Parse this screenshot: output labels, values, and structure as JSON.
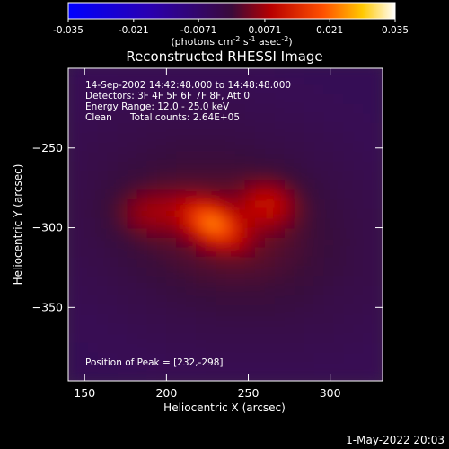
{
  "chart_data": {
    "type": "heatmap",
    "title": "Reconstructed RHESSI Image",
    "xlabel": "Heliocentric X (arcsec)",
    "ylabel": "Heliocentric Y (arcsec)",
    "xlim": [
      140,
      332
    ],
    "ylim": [
      -396,
      -200
    ],
    "xticks": [
      150,
      200,
      250,
      300
    ],
    "yticks": [
      -250,
      -300,
      -350
    ],
    "colorbar": {
      "range": [
        -0.035,
        0.035
      ],
      "ticks": [
        "-0.035",
        "-0.021",
        "-0.0071",
        "0.0071",
        "0.021",
        "0.035"
      ],
      "label_main": "(photons cm",
      "label_exp1": "-2",
      "label_mid1": " s",
      "label_exp2": "-1",
      "label_mid2": " asec",
      "label_exp3": "-2",
      "label_end": ")"
    },
    "annotations": {
      "time": "14-Sep-2002 14:42:48.000 to 14:48:48.000",
      "detectors": "Detectors: 3F 4F 5F 6F 7F 8F, Att 0",
      "energy": "Energy Range: 12.0 - 25.0 keV",
      "method": "Clean",
      "counts": "Total counts: 2.64E+05",
      "peak": "Position of Peak = [232,-298]"
    },
    "peak": [
      232,
      -298
    ],
    "sources": [
      {
        "x": 228,
        "y": -297,
        "sx": 13,
        "sy": 8,
        "amp": 0.02,
        "angle": -30
      },
      {
        "x": 262,
        "y": -285,
        "sx": 12,
        "sy": 10,
        "amp": 0.009,
        "angle": 0
      },
      {
        "x": 190,
        "y": -290,
        "sx": 14,
        "sy": 10,
        "amp": 0.006,
        "angle": 0
      },
      {
        "x": 235,
        "y": -300,
        "sx": 55,
        "sy": 38,
        "amp": 0.007,
        "angle": -15
      }
    ],
    "background": -0.004
  },
  "footer": {
    "date": "1-May-2022 20:03"
  }
}
